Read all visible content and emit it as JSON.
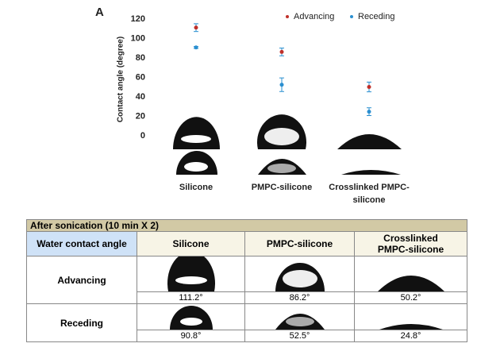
{
  "chart_data": {
    "type": "scatter",
    "panel_label": "A",
    "y_label": "Contact angle (degree)",
    "categories": [
      "Silicone",
      "PMPC-silicone",
      "Crosslinked PMPC-silicone"
    ],
    "series": [
      {
        "name": "Advancing",
        "color": "#c0302a",
        "values": [
          111.2,
          86.2,
          50.2
        ],
        "errors": [
          4,
          4,
          5
        ]
      },
      {
        "name": "Receding",
        "color": "#2a8fd0",
        "values": [
          90.8,
          52.5,
          24.8
        ],
        "errors": [
          1,
          7,
          4
        ]
      }
    ],
    "ylim": [
      0,
      120
    ],
    "yticks": [
      0,
      20,
      40,
      60,
      80,
      100,
      120
    ],
    "legend": "top-right"
  },
  "table": {
    "title": "After sonication (10 min X 2)",
    "header": [
      "Water contact angle",
      "Silicone",
      "PMPC-silicone",
      "Crosslinked PMPC-silicone"
    ],
    "rows": [
      {
        "label": "Advancing",
        "values": [
          "111.2°",
          "86.2°",
          "50.2°"
        ]
      },
      {
        "label": "Receding",
        "values": [
          "90.8°",
          "52.5°",
          "24.8°"
        ]
      }
    ]
  }
}
